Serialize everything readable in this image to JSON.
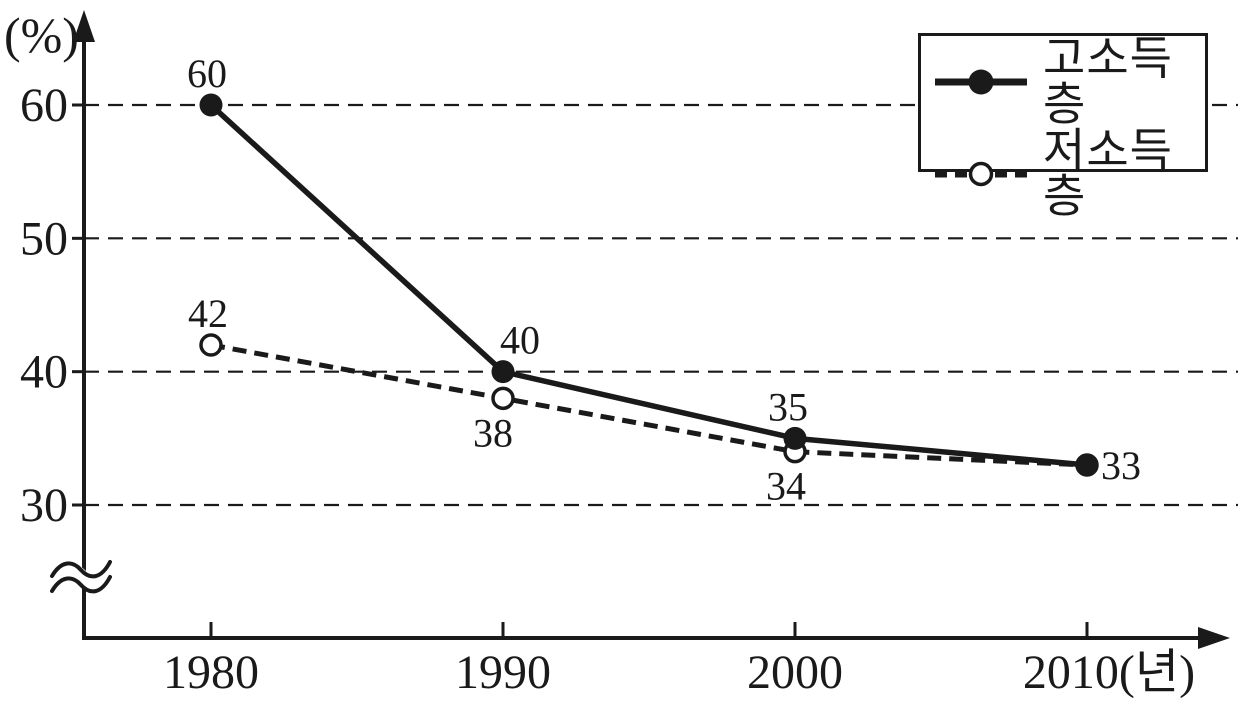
{
  "chart_data": {
    "type": "line",
    "title": "",
    "y_axis_label": "(%)",
    "x_axis_suffix": "(년)",
    "categories": [
      "1980",
      "1990",
      "2000",
      "2010"
    ],
    "y_ticks": [
      60,
      50,
      40,
      30
    ],
    "ylim": [
      30,
      60
    ],
    "axis_break": true,
    "grid": "horizontal-dashed",
    "legend_position": "top-right",
    "line_color": "#1a1a1a",
    "series": [
      {
        "name": "고소득층",
        "line_style": "solid",
        "marker": "filled-circle",
        "values": [
          60,
          40,
          35,
          33
        ],
        "point_labels": [
          {
            "text": "60",
            "pos": "above",
            "dx": -4
          },
          {
            "text": "40",
            "pos": "above",
            "dx": 17
          },
          {
            "text": "35",
            "pos": "above",
            "dx": -7
          },
          {
            "text": "33",
            "pos": "right",
            "dx": 0
          }
        ]
      },
      {
        "name": "저소득층",
        "line_style": "dashed",
        "marker": "open-circle",
        "values": [
          42,
          38,
          34,
          33
        ],
        "point_labels": [
          {
            "text": "42",
            "pos": "above",
            "dx": -3
          },
          {
            "text": "38",
            "pos": "below",
            "dx": -10
          },
          {
            "text": "34",
            "pos": "below",
            "dx": -9
          },
          {
            "text": "",
            "pos": "none",
            "dx": 0
          }
        ]
      }
    ]
  }
}
